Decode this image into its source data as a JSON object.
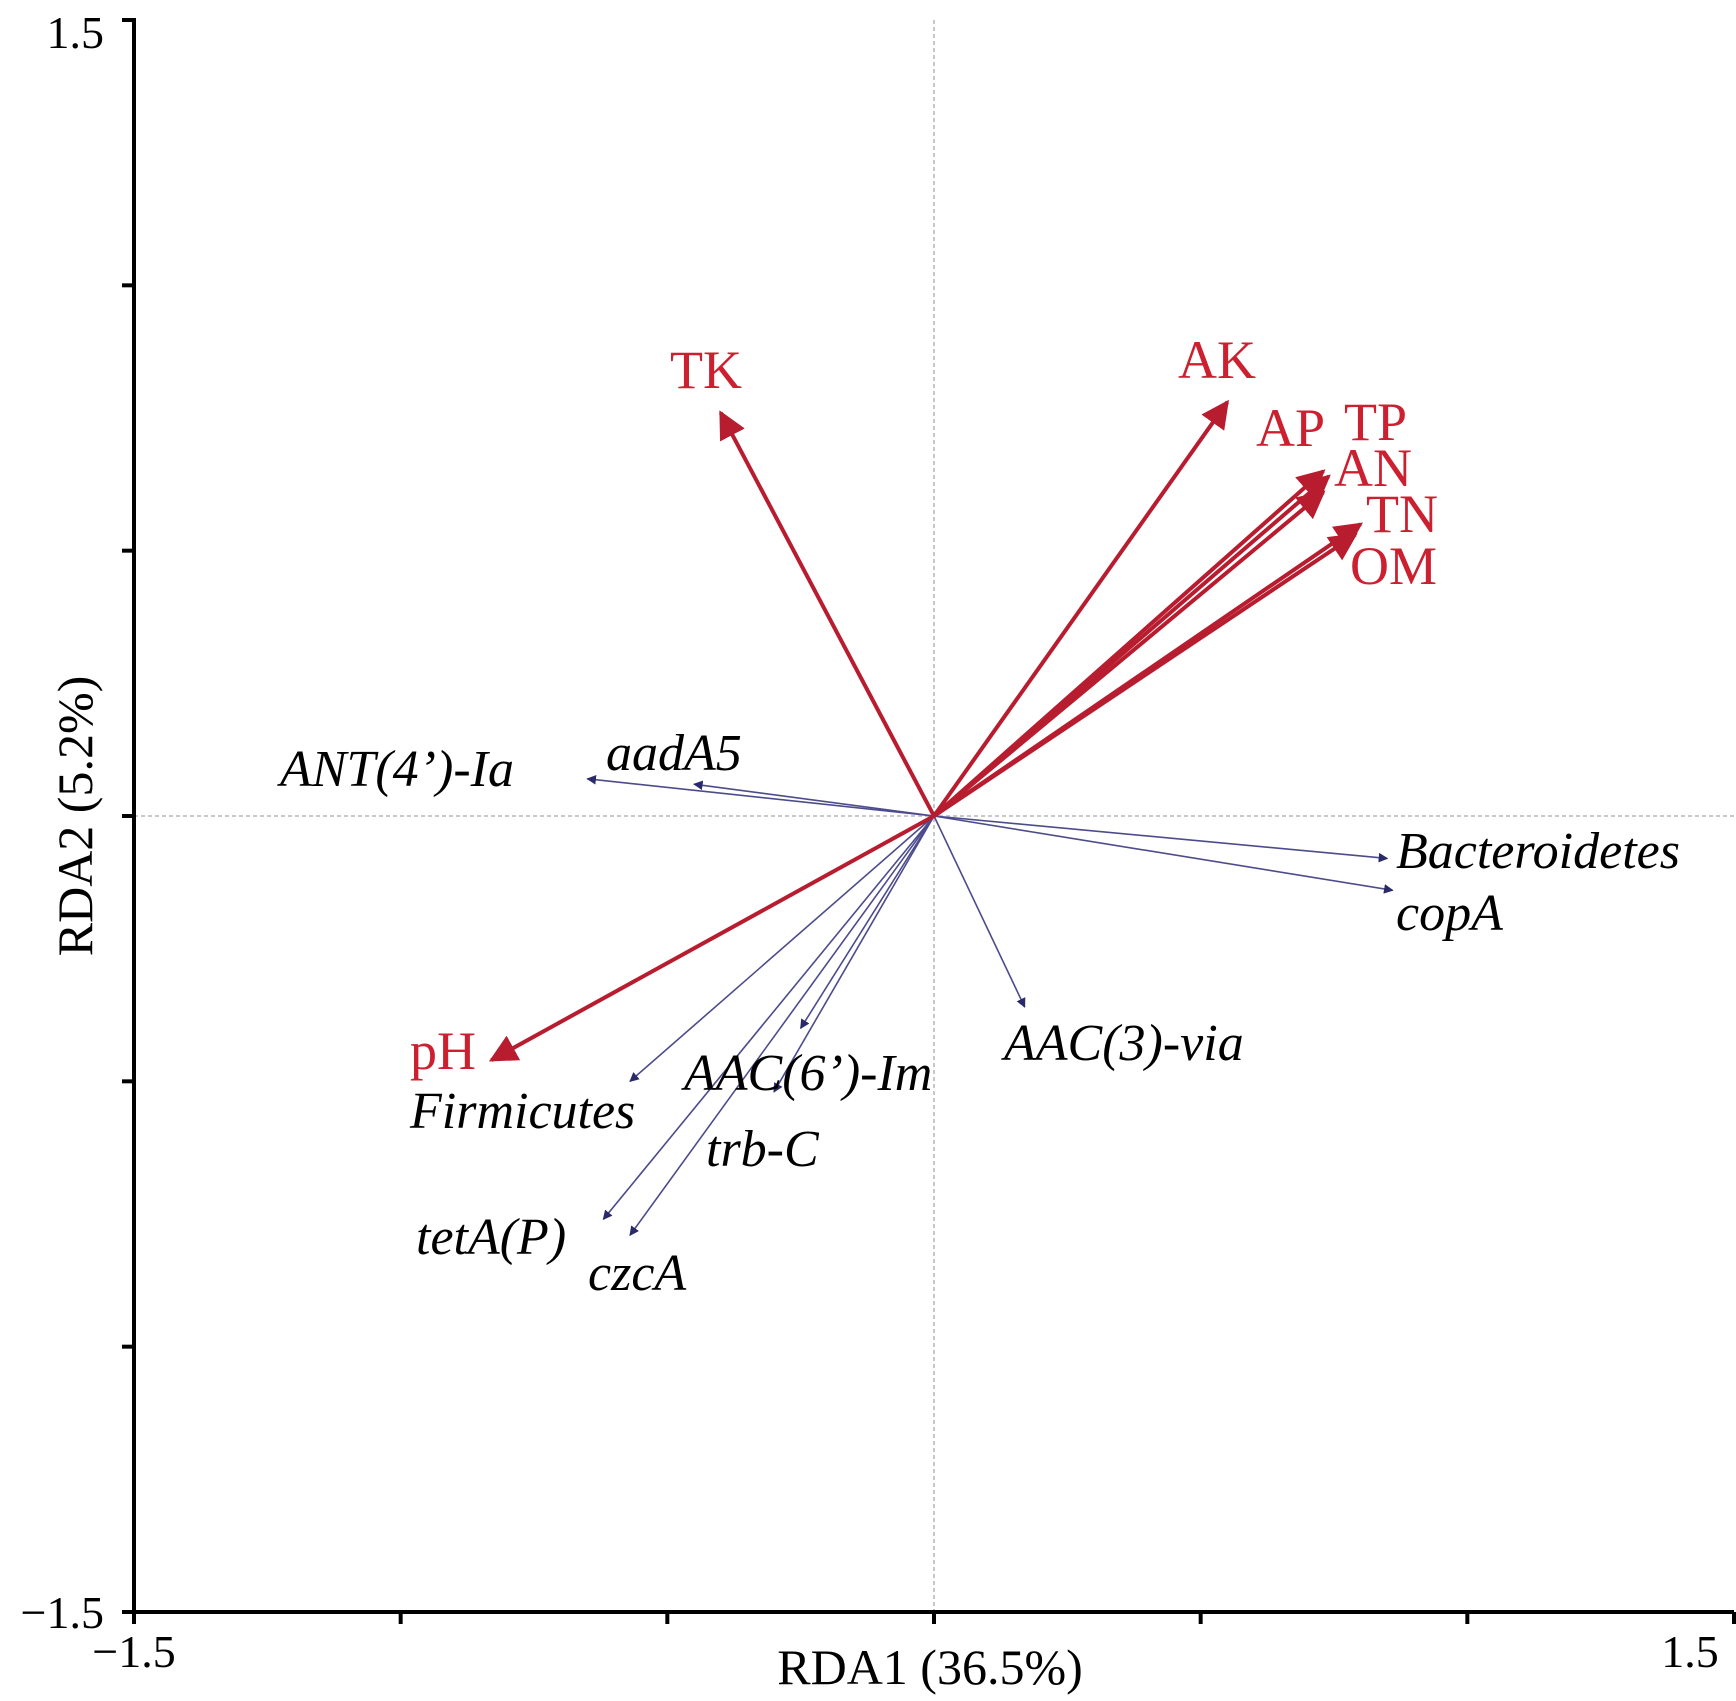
{
  "chart_data": {
    "type": "scatter",
    "subtype": "rda-biplot",
    "title": "",
    "xlabel": "RDA1 (36.5%)",
    "ylabel": "RDA2 (5.2%)",
    "xlim": [
      -1.5,
      1.5
    ],
    "ylim": [
      -1.5,
      1.5
    ],
    "x_tick_labels": [
      "−1.5",
      "1.5"
    ],
    "y_tick_labels": [
      "1.5",
      "−1.5"
    ],
    "grid": false,
    "zero_lines": true,
    "series": [
      {
        "name": "",
        "kind": "environmental-vectors",
        "color": "#b81c2f",
        "points": [
          {
            "label": "TK",
            "x": -0.4,
            "y": 0.76
          },
          {
            "label": "AK",
            "x": 0.55,
            "y": 0.78
          },
          {
            "label": "AP",
            "x": 0.73,
            "y": 0.65
          },
          {
            "label": "TP",
            "x": 0.74,
            "y": 0.64
          },
          {
            "label": "AN",
            "x": 0.73,
            "y": 0.61
          },
          {
            "label": "TN",
            "x": 0.8,
            "y": 0.55
          },
          {
            "label": "OM",
            "x": 0.79,
            "y": 0.53
          },
          {
            "label": "pH",
            "x": -0.83,
            "y": -0.46
          }
        ]
      },
      {
        "name": "",
        "kind": "gene-taxa-vectors",
        "color": "#4c4c8c",
        "points": [
          {
            "label": "ANT(4’)-Ia",
            "x": -0.65,
            "y": 0.07
          },
          {
            "label": "aadA5",
            "x": -0.45,
            "y": 0.06
          },
          {
            "label": "Bacteroidetes",
            "x": 0.85,
            "y": -0.08
          },
          {
            "label": "copA",
            "x": 0.86,
            "y": -0.14
          },
          {
            "label": "AAC(3)-via",
            "x": 0.17,
            "y": -0.36
          },
          {
            "label": "AAC(6’)-Im",
            "x": -0.25,
            "y": -0.4
          },
          {
            "label": "trb-C",
            "x": -0.3,
            "y": -0.52
          },
          {
            "label": "Firmicutes",
            "x": -0.57,
            "y": -0.5
          },
          {
            "label": "tetA(P)",
            "x": -0.62,
            "y": -0.76
          },
          {
            "label": "czcA",
            "x": -0.57,
            "y": -0.79
          }
        ]
      }
    ]
  }
}
